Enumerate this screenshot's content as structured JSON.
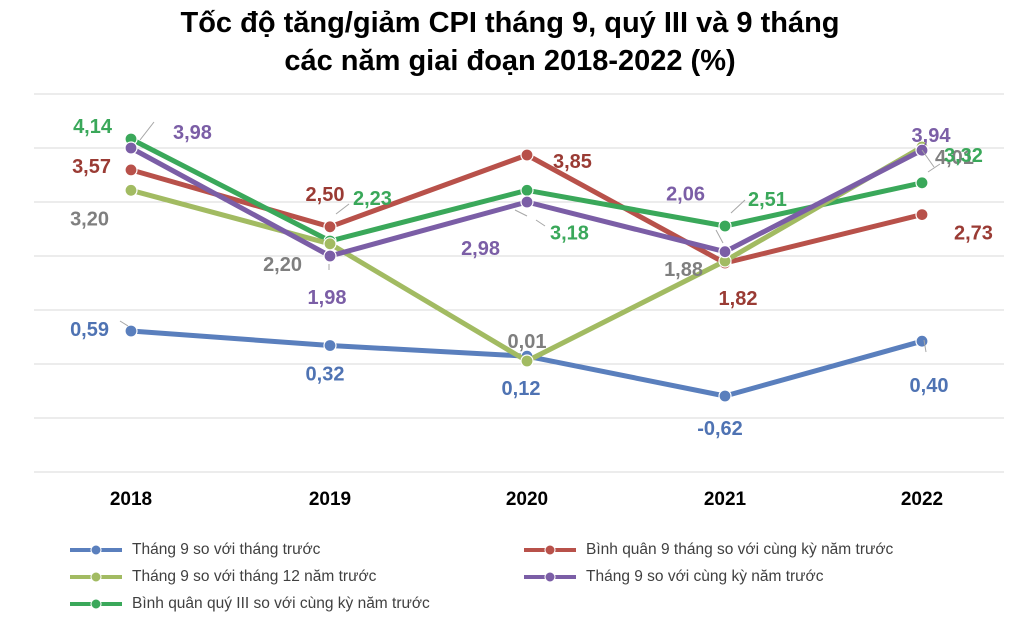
{
  "chart_data": {
    "type": "line",
    "title_line1": "Tốc độ tăng/giảm CPI tháng 9, quý III và 9 tháng",
    "title_line2": "các năm giai đoạn 2018-2022 (%)",
    "categories": [
      "2018",
      "2019",
      "2020",
      "2021",
      "2022"
    ],
    "xlabel": "",
    "ylabel": "",
    "grid": true,
    "series": [
      {
        "name": "Tháng 9 so với tháng trước",
        "color": "#5a7fbd",
        "values": [
          0.59,
          0.32,
          0.12,
          -0.62,
          0.4
        ],
        "labels": [
          "0,59",
          "0,32",
          "0,12",
          "-0,62",
          "0,40"
        ]
      },
      {
        "name": "Bình quân 9 tháng so với cùng kỳ năm trước",
        "color": "#b8514a",
        "values": [
          3.57,
          2.5,
          3.85,
          1.82,
          2.73
        ],
        "labels": [
          "3,57",
          "2,50",
          "3,85",
          "1,82",
          "2,73"
        ]
      },
      {
        "name": "Tháng 9 so với tháng 12 năm trước",
        "color": "#a2bb62",
        "values": [
          3.2,
          2.2,
          0.01,
          1.88,
          4.01
        ],
        "labels": [
          "3,20",
          "2,20",
          "0,01",
          "1,88",
          "4,01"
        ]
      },
      {
        "name": "Tháng 9 so với cùng kỳ năm trước",
        "color": "#7b5ea6",
        "values": [
          3.98,
          1.98,
          2.98,
          2.06,
          3.94
        ],
        "labels": [
          "3,98",
          "1,98",
          "2,98",
          "2,06",
          "3,94"
        ]
      },
      {
        "name": "Bình quân quý III so với cùng kỳ năm trước",
        "color": "#3aa85a",
        "values": [
          4.14,
          2.23,
          3.18,
          2.51,
          3.32
        ],
        "labels": [
          "4,14",
          "2,23",
          "3,18",
          "2,51",
          "3,32"
        ]
      }
    ],
    "label_colors": [
      "#4f73b3",
      "#9a3b34",
      "#7f7f7f",
      "#7b5ea6",
      "#3aa85a"
    ]
  }
}
